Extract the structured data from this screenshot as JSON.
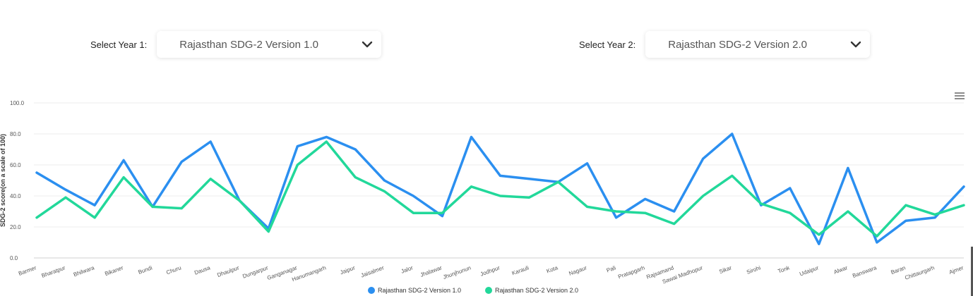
{
  "selectors": {
    "year1": {
      "label": "Select Year 1:",
      "value": "Rajasthan SDG-2 Version 1.0"
    },
    "year2": {
      "label": "Select Year 2:",
      "value": "Rajasthan SDG-2 Version 2.0"
    }
  },
  "chart_data": {
    "type": "line",
    "ylabel": "SDG-2 score(on a scale of 100)",
    "ylim": [
      0,
      100
    ],
    "yticks": [
      "0.0",
      "20.0",
      "40.0",
      "60.0",
      "80.0",
      "100.0"
    ],
    "grid": true,
    "legend_position": "bottom",
    "categories": [
      "Barmer",
      "Bharatpur",
      "Bhilwara",
      "Bikaner",
      "Bundi",
      "Churu",
      "Dausa",
      "Dhaulpur",
      "Dungarpur",
      "Ganganagar",
      "Hanumangarh",
      "Jaipur",
      "Jaisalmer",
      "Jalor",
      "Jhalawar",
      "Jhunjhunun",
      "Jodhpur",
      "Karauli",
      "Kota",
      "Nagaur",
      "Pali",
      "Pratapgarh",
      "Rajsamand",
      "Sawai Madhopur",
      "Sikar",
      "Sirohi",
      "Tonk",
      "Udaipur",
      "Alwar",
      "Banswara",
      "Baran",
      "Chittaurgarh",
      "Ajmer"
    ],
    "series": [
      {
        "name": "Rajasthan SDG-2 Version 1.0",
        "color": "#2b8ff0",
        "values": [
          55,
          44,
          34,
          63,
          33,
          62,
          75,
          37,
          19,
          72,
          78,
          70,
          50,
          40,
          27,
          78,
          53,
          51,
          49,
          61,
          26,
          38,
          30,
          64,
          80,
          34,
          45,
          9,
          58,
          10,
          24,
          26,
          46
        ]
      },
      {
        "name": "Rajasthan SDG-2 Version 2.0",
        "color": "#22d89a",
        "values": [
          26,
          39,
          26,
          52,
          33,
          32,
          51,
          37,
          17,
          60,
          75,
          52,
          43,
          29,
          29,
          46,
          40,
          39,
          49,
          33,
          30,
          29,
          22,
          40,
          53,
          35,
          29,
          15,
          30,
          14,
          34,
          28,
          34
        ]
      }
    ]
  }
}
